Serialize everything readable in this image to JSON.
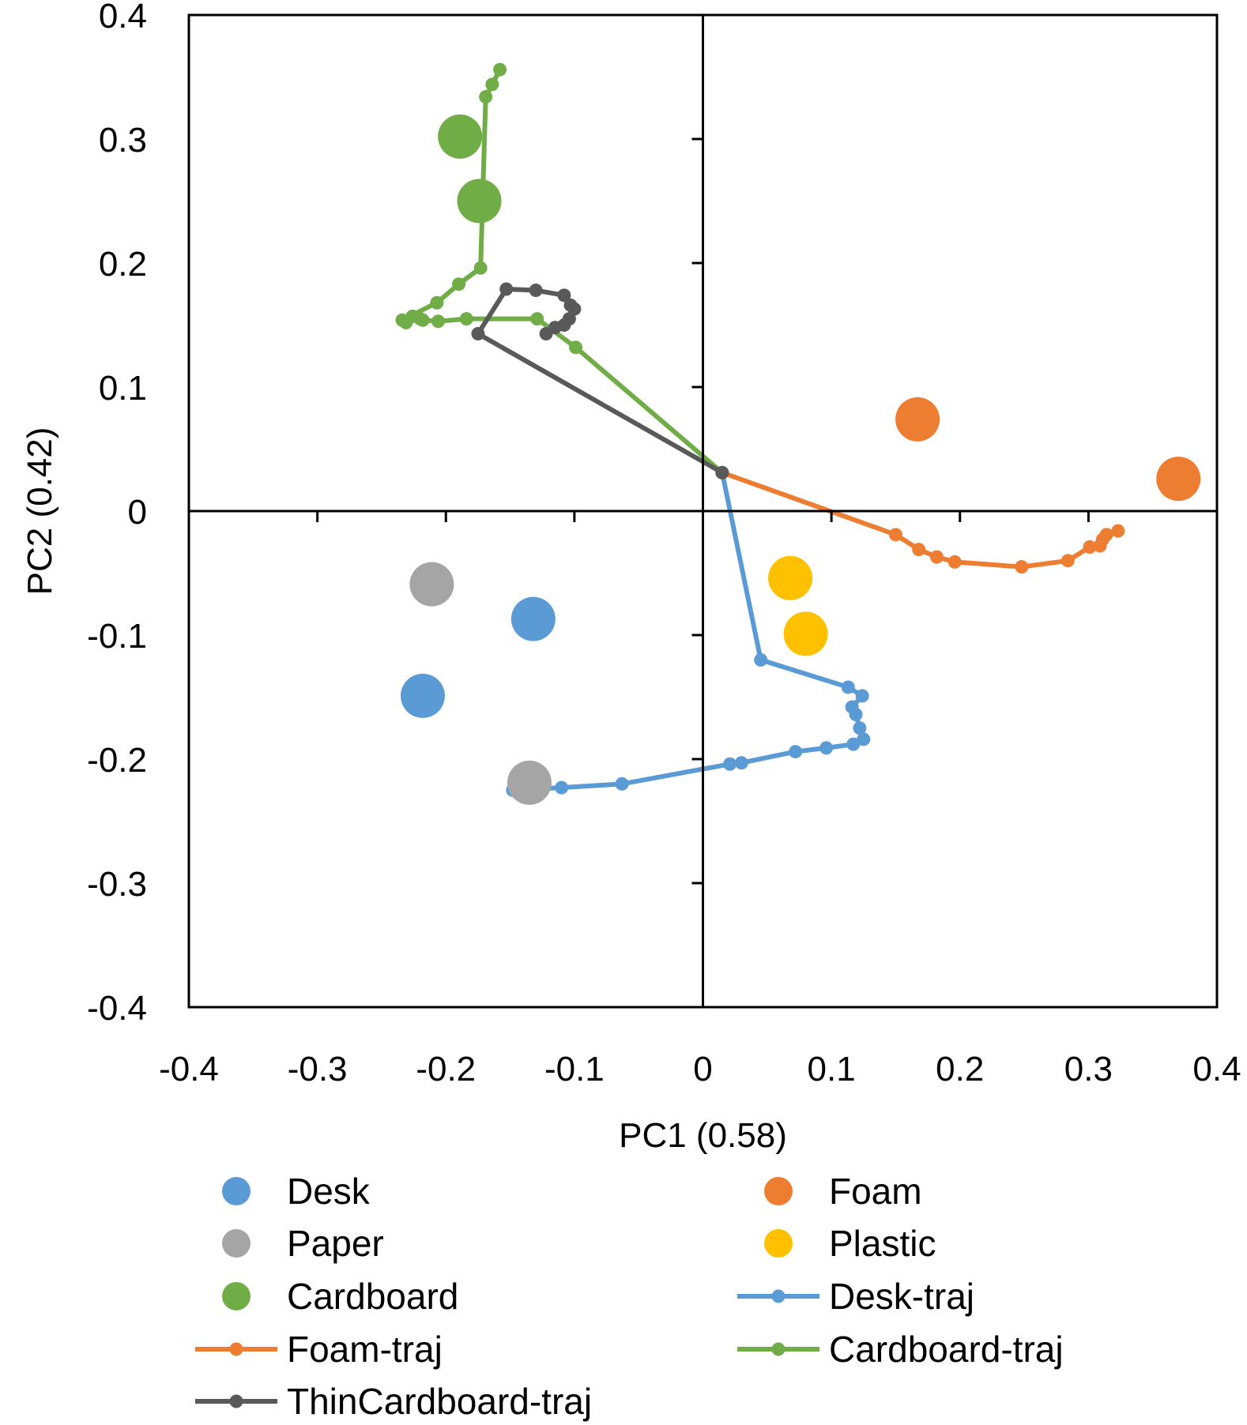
{
  "chart_data": {
    "type": "scatter",
    "title": "",
    "xlabel": "PC1 (0.58)",
    "ylabel": "PC2 (0.42)",
    "xlim": [
      -0.4,
      0.4
    ],
    "ylim": [
      -0.4,
      0.4
    ],
    "x_ticks": [
      -0.4,
      -0.3,
      -0.2,
      -0.1,
      0,
      0.1,
      0.2,
      0.3,
      0.4
    ],
    "y_ticks": [
      0.4,
      0.3,
      0.2,
      0.1,
      0,
      -0.1,
      -0.2,
      -0.3,
      -0.4
    ],
    "x_tick_labels": [
      "-0.4",
      "-0.3",
      "-0.2",
      "-0.1",
      "0",
      "0.1",
      "0.2",
      "0.3",
      "0.4"
    ],
    "y_tick_labels": [
      "0.4",
      "0.3",
      "0.2",
      "0.1",
      "0",
      "-0.1",
      "-0.2",
      "-0.3",
      "-0.4"
    ],
    "grid": false,
    "legend_position": "bottom",
    "series": [
      {
        "name": "Desk",
        "kind": "points",
        "color": "#5B9BD5",
        "points": [
          [
            -0.132,
            -0.087
          ],
          [
            -0.218,
            -0.149
          ]
        ]
      },
      {
        "name": "Foam",
        "kind": "points",
        "color": "#ED7D31",
        "points": [
          [
            0.167,
            0.074
          ],
          [
            0.37,
            0.026
          ]
        ]
      },
      {
        "name": "Paper",
        "kind": "points",
        "color": "#A5A5A5",
        "points": [
          [
            -0.211,
            -0.059
          ],
          [
            -0.135,
            -0.219
          ]
        ]
      },
      {
        "name": "Plastic",
        "kind": "points",
        "color": "#FFC000",
        "points": [
          [
            0.068,
            -0.054
          ],
          [
            0.08,
            -0.099
          ]
        ]
      },
      {
        "name": "Cardboard",
        "kind": "points",
        "color": "#70AD47",
        "points": [
          [
            -0.189,
            0.302
          ],
          [
            -0.174,
            0.25
          ]
        ]
      },
      {
        "name": "Desk-traj",
        "kind": "trajectory",
        "color": "#5B9BD5",
        "points": [
          [
            0.015,
            0.031
          ],
          [
            0.045,
            -0.12
          ],
          [
            0.113,
            -0.142
          ],
          [
            0.124,
            -0.149
          ],
          [
            0.116,
            -0.158
          ],
          [
            0.119,
            -0.164
          ],
          [
            0.122,
            -0.175
          ],
          [
            0.125,
            -0.184
          ],
          [
            0.117,
            -0.188
          ],
          [
            0.096,
            -0.191
          ],
          [
            0.072,
            -0.194
          ],
          [
            0.03,
            -0.203
          ],
          [
            0.021,
            -0.204
          ],
          [
            -0.063,
            -0.22
          ],
          [
            -0.11,
            -0.223
          ],
          [
            -0.148,
            -0.225
          ]
        ]
      },
      {
        "name": "Foam-traj",
        "kind": "trajectory",
        "color": "#ED7D31",
        "points": [
          [
            0.015,
            0.031
          ],
          [
            0.15,
            -0.019
          ],
          [
            0.168,
            -0.031
          ],
          [
            0.182,
            -0.037
          ],
          [
            0.196,
            -0.041
          ],
          [
            0.248,
            -0.045
          ],
          [
            0.284,
            -0.04
          ],
          [
            0.301,
            -0.029
          ],
          [
            0.309,
            -0.028
          ],
          [
            0.311,
            -0.023
          ],
          [
            0.314,
            -0.019
          ],
          [
            0.323,
            -0.016
          ]
        ]
      },
      {
        "name": "Cardboard-traj",
        "kind": "trajectory",
        "color": "#70AD47",
        "points": [
          [
            0.015,
            0.031
          ],
          [
            -0.099,
            0.132
          ],
          [
            -0.129,
            0.155
          ],
          [
            -0.184,
            0.155
          ],
          [
            -0.206,
            0.153
          ],
          [
            -0.218,
            0.154
          ],
          [
            -0.22,
            0.155
          ],
          [
            -0.226,
            0.157
          ],
          [
            -0.231,
            0.152
          ],
          [
            -0.234,
            0.154
          ],
          [
            -0.207,
            0.168
          ],
          [
            -0.19,
            0.183
          ],
          [
            -0.173,
            0.196
          ],
          [
            -0.169,
            0.334
          ],
          [
            -0.164,
            0.344
          ],
          [
            -0.158,
            0.356
          ]
        ]
      },
      {
        "name": "ThinCardboard-traj",
        "kind": "trajectory",
        "color": "#595959",
        "points": [
          [
            0.015,
            0.031
          ],
          [
            -0.175,
            0.143
          ],
          [
            -0.153,
            0.179
          ],
          [
            -0.13,
            0.178
          ],
          [
            -0.108,
            0.174
          ],
          [
            -0.103,
            0.166
          ],
          [
            -0.1,
            0.163
          ],
          [
            -0.104,
            0.155
          ],
          [
            -0.108,
            0.15
          ],
          [
            -0.115,
            0.148
          ],
          [
            -0.122,
            0.143
          ]
        ]
      }
    ],
    "legend": [
      {
        "label": "Desk",
        "series": "Desk"
      },
      {
        "label": "Foam",
        "series": "Foam"
      },
      {
        "label": "Paper",
        "series": "Paper"
      },
      {
        "label": "Plastic",
        "series": "Plastic"
      },
      {
        "label": "Cardboard",
        "series": "Cardboard"
      },
      {
        "label": "Desk-traj",
        "series": "Desk-traj"
      },
      {
        "label": "Foam-traj",
        "series": "Foam-traj"
      },
      {
        "label": "Cardboard-traj",
        "series": "Cardboard-traj"
      },
      {
        "label": "ThinCardboard-traj",
        "series": "ThinCardboard-traj"
      }
    ]
  }
}
